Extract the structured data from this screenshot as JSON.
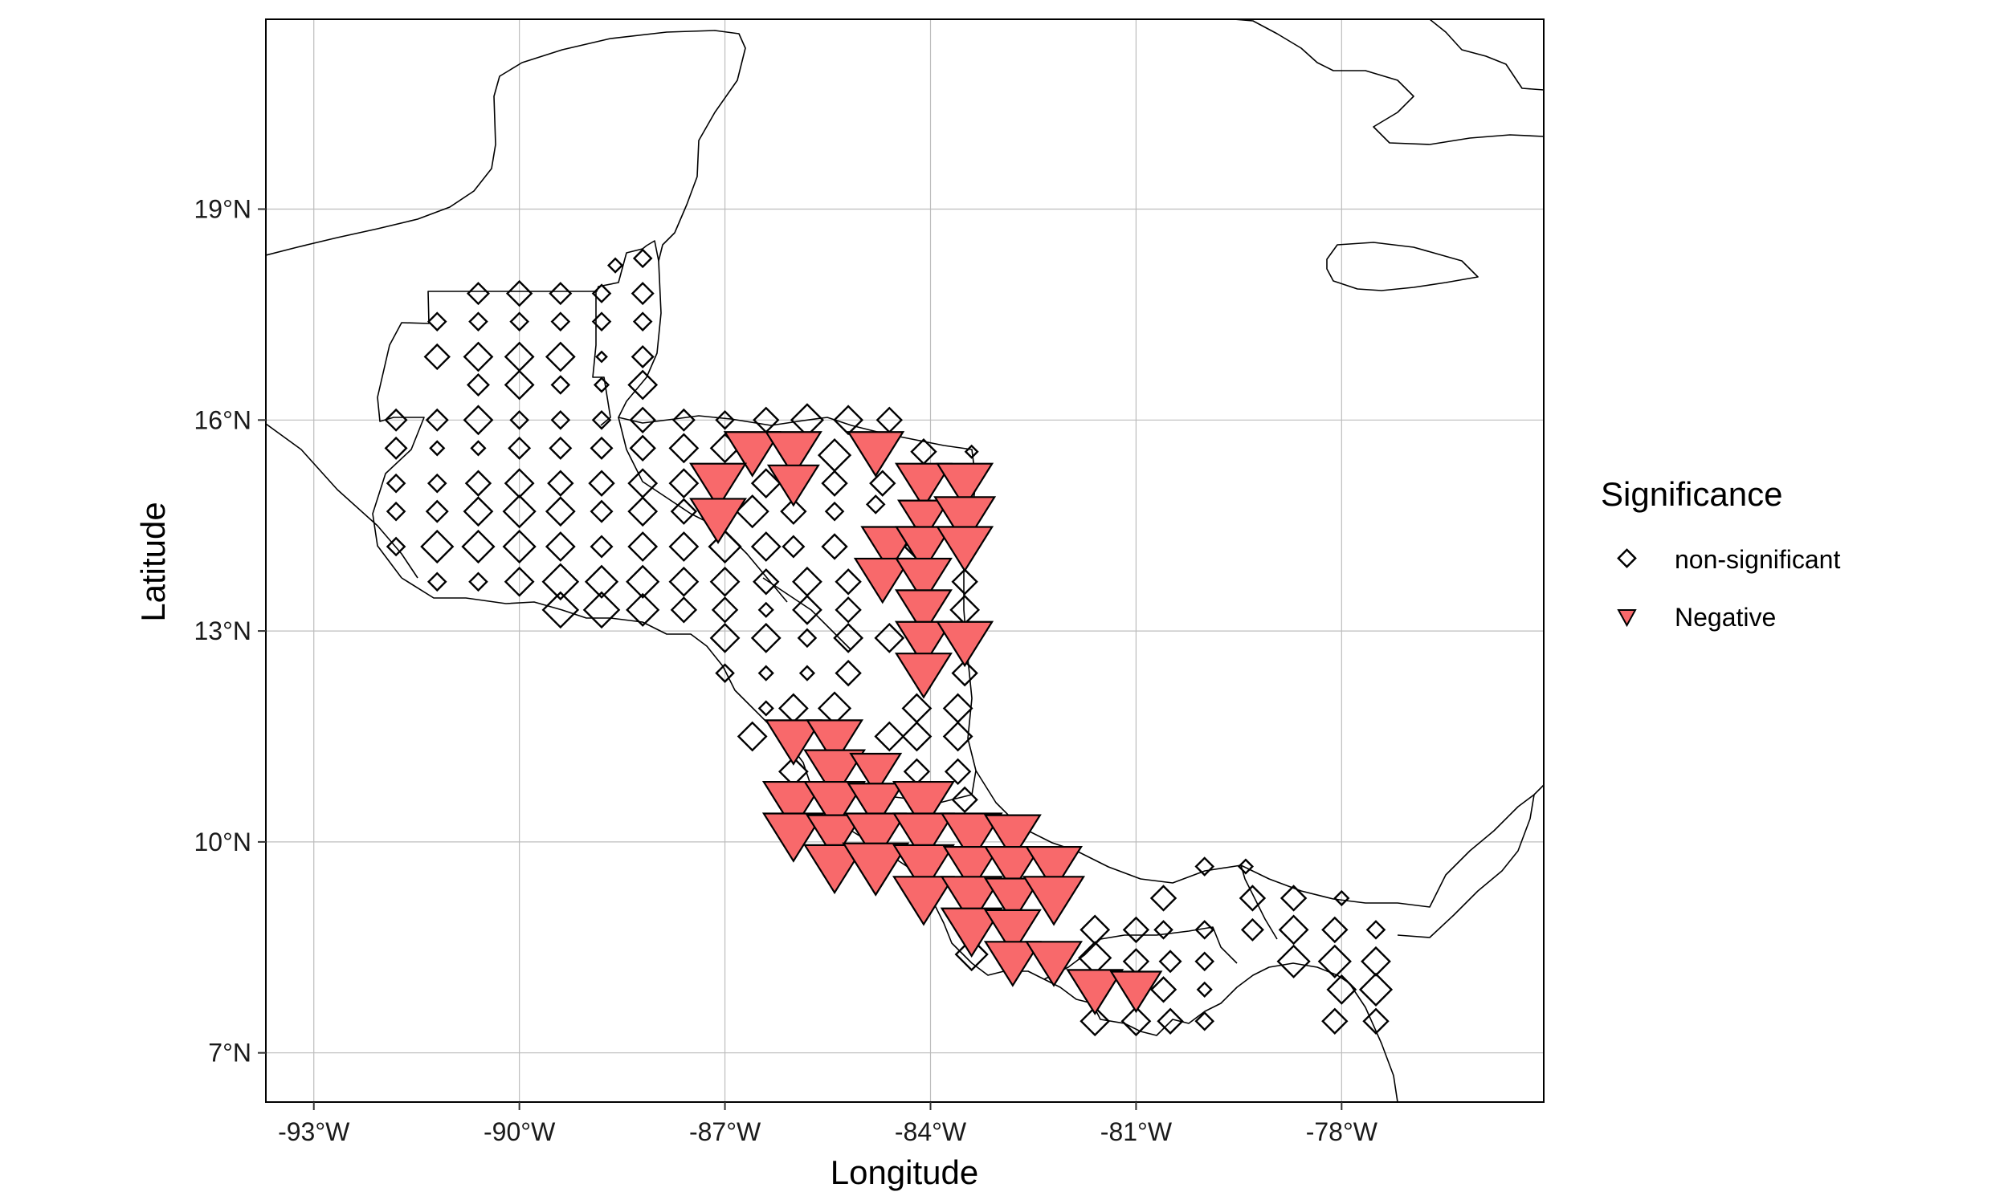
{
  "chart_data": {
    "type": "scatter",
    "x_axis": {
      "label": "Longitude",
      "range": [
        -93.7,
        -75.05
      ],
      "ticks": [
        -93,
        -90,
        -87,
        -84,
        -81,
        -78
      ],
      "tick_labels": [
        "-93°W",
        "-90°W",
        "-87°W",
        "-84°W",
        "-81°W",
        "-78°W"
      ]
    },
    "y_axis": {
      "label": "Latitude",
      "range": [
        6.3,
        21.7
      ],
      "ticks": [
        7,
        10,
        13,
        16,
        19
      ],
      "tick_labels": [
        "7°N",
        "10°N",
        "13°N",
        "16°N",
        "19°N"
      ]
    },
    "grid": true,
    "legend": {
      "title": "Significance",
      "placement": "right",
      "entries": [
        {
          "label": "non-significant",
          "shape": "diamond",
          "color": "#ffffff"
        },
        {
          "label": "Negative",
          "shape": "triangle-down",
          "color": "#f8696b"
        }
      ]
    },
    "colors": {
      "negative_fill": "#f8696b",
      "outline": "#000000",
      "coastline": "#000000",
      "grid": "#bdbdbd"
    },
    "series": [
      {
        "name": "non-significant",
        "marker": "diamond",
        "points": [
          [
            -88.2,
            18.3,
            0.3
          ],
          [
            -88.6,
            18.2,
            0.2
          ],
          [
            -90.6,
            17.8,
            0.4
          ],
          [
            -90.0,
            17.8,
            0.5
          ],
          [
            -89.4,
            17.8,
            0.4
          ],
          [
            -88.8,
            17.8,
            0.3
          ],
          [
            -88.2,
            17.8,
            0.4
          ],
          [
            -91.2,
            17.4,
            0.3
          ],
          [
            -90.6,
            17.4,
            0.3
          ],
          [
            -90.0,
            17.4,
            0.3
          ],
          [
            -89.4,
            17.4,
            0.3
          ],
          [
            -88.8,
            17.4,
            0.3
          ],
          [
            -88.2,
            17.4,
            0.3
          ],
          [
            -91.2,
            16.9,
            0.5
          ],
          [
            -90.6,
            16.9,
            0.6
          ],
          [
            -90.0,
            16.9,
            0.6
          ],
          [
            -89.4,
            16.9,
            0.6
          ],
          [
            -88.8,
            16.9,
            0.1
          ],
          [
            -88.2,
            16.9,
            0.4
          ],
          [
            -90.6,
            16.5,
            0.4
          ],
          [
            -90.0,
            16.5,
            0.6
          ],
          [
            -89.4,
            16.5,
            0.3
          ],
          [
            -88.8,
            16.5,
            0.2
          ],
          [
            -88.2,
            16.5,
            0.6
          ],
          [
            -91.8,
            16.0,
            0.4
          ],
          [
            -91.2,
            16.0,
            0.4
          ],
          [
            -90.6,
            16.0,
            0.6
          ],
          [
            -90.0,
            16.0,
            0.3
          ],
          [
            -89.4,
            16.0,
            0.3
          ],
          [
            -88.8,
            16.0,
            0.3
          ],
          [
            -88.2,
            16.0,
            0.5
          ],
          [
            -87.6,
            16.0,
            0.4
          ],
          [
            -87.0,
            16.0,
            0.3
          ],
          [
            -86.4,
            16.0,
            0.5
          ],
          [
            -85.8,
            16.0,
            0.7
          ],
          [
            -85.2,
            16.0,
            0.6
          ],
          [
            -84.6,
            16.0,
            0.5
          ],
          [
            -91.8,
            15.6,
            0.4
          ],
          [
            -91.2,
            15.6,
            0.2
          ],
          [
            -90.6,
            15.6,
            0.2
          ],
          [
            -90.0,
            15.6,
            0.4
          ],
          [
            -89.4,
            15.6,
            0.4
          ],
          [
            -88.8,
            15.6,
            0.4
          ],
          [
            -88.2,
            15.6,
            0.5
          ],
          [
            -87.6,
            15.6,
            0.6
          ],
          [
            -87.0,
            15.6,
            0.6
          ],
          [
            -85.4,
            15.5,
            0.7
          ],
          [
            -84.1,
            15.55,
            0.5
          ],
          [
            -83.4,
            15.55,
            0.15
          ],
          [
            -91.8,
            15.1,
            0.3
          ],
          [
            -91.2,
            15.1,
            0.3
          ],
          [
            -90.6,
            15.1,
            0.5
          ],
          [
            -90.0,
            15.1,
            0.6
          ],
          [
            -89.4,
            15.1,
            0.5
          ],
          [
            -88.8,
            15.1,
            0.5
          ],
          [
            -88.2,
            15.1,
            0.6
          ],
          [
            -87.6,
            15.1,
            0.6
          ],
          [
            -86.4,
            15.1,
            0.6
          ],
          [
            -85.4,
            15.1,
            0.5
          ],
          [
            -84.7,
            15.1,
            0.5
          ],
          [
            -91.8,
            14.7,
            0.3
          ],
          [
            -91.2,
            14.7,
            0.4
          ],
          [
            -90.6,
            14.7,
            0.6
          ],
          [
            -90.0,
            14.7,
            0.7
          ],
          [
            -89.4,
            14.7,
            0.6
          ],
          [
            -88.8,
            14.7,
            0.4
          ],
          [
            -88.2,
            14.7,
            0.6
          ],
          [
            -87.6,
            14.7,
            0.5
          ],
          [
            -86.6,
            14.7,
            0.7
          ],
          [
            -86.0,
            14.7,
            0.5
          ],
          [
            -85.4,
            14.7,
            0.3
          ],
          [
            -84.8,
            14.8,
            0.3
          ],
          [
            -91.8,
            14.2,
            0.3
          ],
          [
            -91.2,
            14.2,
            0.7
          ],
          [
            -90.6,
            14.2,
            0.7
          ],
          [
            -90.0,
            14.2,
            0.7
          ],
          [
            -89.4,
            14.2,
            0.6
          ],
          [
            -88.8,
            14.2,
            0.4
          ],
          [
            -88.2,
            14.2,
            0.6
          ],
          [
            -87.6,
            14.2,
            0.6
          ],
          [
            -87.0,
            14.2,
            0.7
          ],
          [
            -86.4,
            14.2,
            0.6
          ],
          [
            -86.0,
            14.2,
            0.4
          ],
          [
            -85.4,
            14.2,
            0.5
          ],
          [
            -84.2,
            14.2,
            0.5
          ],
          [
            -91.2,
            13.7,
            0.3
          ],
          [
            -90.6,
            13.7,
            0.3
          ],
          [
            -90.0,
            13.7,
            0.6
          ],
          [
            -89.4,
            13.7,
            0.8
          ],
          [
            -88.8,
            13.7,
            0.7
          ],
          [
            -88.2,
            13.7,
            0.7
          ],
          [
            -87.6,
            13.7,
            0.6
          ],
          [
            -87.0,
            13.7,
            0.6
          ],
          [
            -86.4,
            13.7,
            0.5
          ],
          [
            -85.8,
            13.7,
            0.6
          ],
          [
            -85.2,
            13.7,
            0.5
          ],
          [
            -83.5,
            13.7,
            0.5
          ],
          [
            -89.4,
            13.3,
            0.8
          ],
          [
            -88.8,
            13.3,
            0.8
          ],
          [
            -88.2,
            13.3,
            0.7
          ],
          [
            -87.6,
            13.3,
            0.5
          ],
          [
            -87.0,
            13.3,
            0.5
          ],
          [
            -86.4,
            13.3,
            0.2
          ],
          [
            -85.8,
            13.3,
            0.6
          ],
          [
            -85.2,
            13.3,
            0.5
          ],
          [
            -83.5,
            13.3,
            0.6
          ],
          [
            -87.0,
            12.9,
            0.6
          ],
          [
            -86.4,
            12.9,
            0.6
          ],
          [
            -85.8,
            12.9,
            0.3
          ],
          [
            -85.2,
            12.9,
            0.6
          ],
          [
            -84.6,
            12.9,
            0.6
          ],
          [
            -87.0,
            12.4,
            0.3
          ],
          [
            -86.4,
            12.4,
            0.2
          ],
          [
            -85.8,
            12.4,
            0.2
          ],
          [
            -85.2,
            12.4,
            0.5
          ],
          [
            -83.5,
            12.4,
            0.5
          ],
          [
            -86.4,
            11.9,
            0.2
          ],
          [
            -86.0,
            11.9,
            0.6
          ],
          [
            -85.4,
            11.9,
            0.7
          ],
          [
            -84.2,
            11.9,
            0.6
          ],
          [
            -83.6,
            11.9,
            0.6
          ],
          [
            -86.6,
            11.5,
            0.6
          ],
          [
            -85.4,
            11.5,
            0.5
          ],
          [
            -84.6,
            11.5,
            0.6
          ],
          [
            -84.2,
            11.5,
            0.6
          ],
          [
            -83.6,
            11.5,
            0.6
          ],
          [
            -86.0,
            11.0,
            0.6
          ],
          [
            -85.4,
            11.0,
            0.6
          ],
          [
            -84.2,
            11.0,
            0.5
          ],
          [
            -83.6,
            11.0,
            0.5
          ],
          [
            -83.5,
            10.6,
            0.5
          ],
          [
            -80.6,
            9.2,
            0.5
          ],
          [
            -80.0,
            9.65,
            0.3
          ],
          [
            -79.4,
            9.65,
            0.2
          ],
          [
            -79.3,
            9.2,
            0.5
          ],
          [
            -78.7,
            9.2,
            0.5
          ],
          [
            -78.0,
            9.2,
            0.2
          ],
          [
            -81.6,
            8.75,
            0.6
          ],
          [
            -81.0,
            8.75,
            0.5
          ],
          [
            -80.6,
            8.75,
            0.3
          ],
          [
            -80.0,
            8.75,
            0.3
          ],
          [
            -79.3,
            8.75,
            0.4
          ],
          [
            -78.7,
            8.75,
            0.6
          ],
          [
            -78.1,
            8.75,
            0.5
          ],
          [
            -77.5,
            8.75,
            0.3
          ],
          [
            -83.4,
            8.4,
            0.7
          ],
          [
            -81.6,
            8.35,
            0.7
          ],
          [
            -81.0,
            8.3,
            0.5
          ],
          [
            -80.5,
            8.3,
            0.4
          ],
          [
            -80.0,
            8.3,
            0.3
          ],
          [
            -78.7,
            8.3,
            0.7
          ],
          [
            -78.1,
            8.3,
            0.7
          ],
          [
            -77.5,
            8.3,
            0.6
          ],
          [
            -80.6,
            7.9,
            0.5
          ],
          [
            -80.0,
            7.9,
            0.2
          ],
          [
            -78.0,
            7.9,
            0.6
          ],
          [
            -77.5,
            7.9,
            0.7
          ],
          [
            -81.6,
            7.45,
            0.6
          ],
          [
            -81.0,
            7.45,
            0.6
          ],
          [
            -80.5,
            7.45,
            0.5
          ],
          [
            -80.0,
            7.45,
            0.3
          ],
          [
            -78.1,
            7.45,
            0.5
          ],
          [
            -77.5,
            7.45,
            0.5
          ]
        ]
      },
      {
        "name": "Negative",
        "marker": "triangle-down",
        "points": [
          [
            -86.6,
            15.55,
            0.8
          ],
          [
            -86.0,
            15.55,
            0.8
          ],
          [
            -84.8,
            15.55,
            0.8
          ],
          [
            -87.1,
            15.1,
            0.8
          ],
          [
            -86.0,
            15.1,
            0.7
          ],
          [
            -84.1,
            15.1,
            0.8
          ],
          [
            -83.5,
            15.1,
            0.8
          ],
          [
            -87.1,
            14.6,
            0.8
          ],
          [
            -84.1,
            14.6,
            0.7
          ],
          [
            -83.5,
            14.6,
            0.9
          ],
          [
            -84.6,
            14.2,
            0.8
          ],
          [
            -84.1,
            14.2,
            0.8
          ],
          [
            -83.5,
            14.2,
            0.8
          ],
          [
            -84.7,
            13.75,
            0.8
          ],
          [
            -84.1,
            13.75,
            0.8
          ],
          [
            -84.1,
            13.3,
            0.8
          ],
          [
            -84.1,
            12.85,
            0.8
          ],
          [
            -83.5,
            12.85,
            0.8
          ],
          [
            -84.1,
            12.4,
            0.8
          ],
          [
            -86.0,
            11.45,
            0.8
          ],
          [
            -85.4,
            11.45,
            0.8
          ],
          [
            -85.4,
            11.0,
            0.9
          ],
          [
            -84.8,
            11.0,
            0.7
          ],
          [
            -86.0,
            10.55,
            0.9
          ],
          [
            -85.4,
            10.55,
            0.9
          ],
          [
            -84.8,
            10.55,
            0.8
          ],
          [
            -84.1,
            10.55,
            0.9
          ],
          [
            -86.0,
            10.1,
            0.9
          ],
          [
            -85.4,
            10.1,
            0.8
          ],
          [
            -84.8,
            10.1,
            0.9
          ],
          [
            -84.1,
            10.1,
            0.9
          ],
          [
            -83.4,
            10.1,
            0.9
          ],
          [
            -82.8,
            10.1,
            0.8
          ],
          [
            -85.4,
            9.65,
            0.9
          ],
          [
            -84.8,
            9.65,
            1.0
          ],
          [
            -84.1,
            9.65,
            0.9
          ],
          [
            -83.4,
            9.65,
            0.8
          ],
          [
            -82.8,
            9.65,
            0.8
          ],
          [
            -82.2,
            9.65,
            0.8
          ],
          [
            -84.1,
            9.2,
            0.9
          ],
          [
            -83.4,
            9.2,
            0.9
          ],
          [
            -82.8,
            9.2,
            0.8
          ],
          [
            -82.2,
            9.2,
            0.9
          ],
          [
            -83.4,
            8.75,
            0.9
          ],
          [
            -82.8,
            8.75,
            0.8
          ],
          [
            -82.8,
            8.3,
            0.8
          ],
          [
            -82.2,
            8.3,
            0.8
          ],
          [
            -81.6,
            7.9,
            0.8
          ],
          [
            -81.0,
            7.9,
            0.7
          ]
        ]
      }
    ]
  }
}
